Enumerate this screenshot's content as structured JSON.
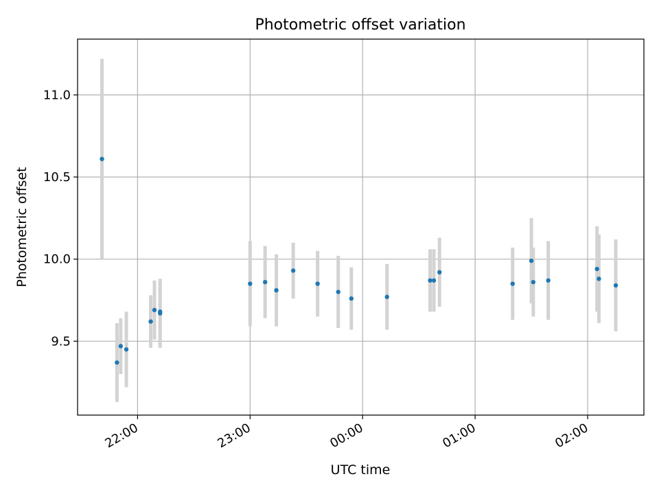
{
  "chart_data": {
    "type": "scatter",
    "title": "Photometric offset variation",
    "xlabel": "UTC time",
    "ylabel": "Photometric offset",
    "grid": true,
    "x_tick_labels": [
      "22:00",
      "23:00",
      "00:00",
      "01:00",
      "02:00"
    ],
    "y_tick_labels": [
      "9.5",
      "10.0",
      "10.5",
      "11.0"
    ],
    "y_ticks": [
      9.5,
      10.0,
      10.5,
      11.0
    ],
    "ylim": [
      9.05,
      11.34
    ],
    "xlim": [
      "21:28",
      "02:30"
    ],
    "points": [
      {
        "x": "21:41",
        "y": 10.61,
        "err": 0.61
      },
      {
        "x": "21:49",
        "y": 9.37,
        "err": 0.24
      },
      {
        "x": "21:51",
        "y": 9.47,
        "err": 0.17
      },
      {
        "x": "21:54",
        "y": 9.45,
        "err": 0.23
      },
      {
        "x": "22:07",
        "y": 9.62,
        "err": 0.16
      },
      {
        "x": "22:09",
        "y": 9.69,
        "err": 0.18
      },
      {
        "x": "22:12",
        "y": 9.67,
        "err": 0.21
      },
      {
        "x": "22:12",
        "y": 9.68,
        "err": 0.2
      },
      {
        "x": "23:00",
        "y": 9.85,
        "err": 0.26
      },
      {
        "x": "23:08",
        "y": 9.86,
        "err": 0.22
      },
      {
        "x": "23:14",
        "y": 9.81,
        "err": 0.22
      },
      {
        "x": "23:23",
        "y": 9.93,
        "err": 0.17
      },
      {
        "x": "23:36",
        "y": 9.85,
        "err": 0.2
      },
      {
        "x": "23:47",
        "y": 9.8,
        "err": 0.22
      },
      {
        "x": "23:54",
        "y": 9.76,
        "err": 0.19
      },
      {
        "x": "00:13",
        "y": 9.77,
        "err": 0.2
      },
      {
        "x": "00:36",
        "y": 9.87,
        "err": 0.19
      },
      {
        "x": "00:38",
        "y": 9.87,
        "err": 0.19
      },
      {
        "x": "00:41",
        "y": 9.92,
        "err": 0.21
      },
      {
        "x": "01:20",
        "y": 9.85,
        "err": 0.22
      },
      {
        "x": "01:30",
        "y": 9.99,
        "err": 0.26
      },
      {
        "x": "01:31",
        "y": 9.86,
        "err": 0.21
      },
      {
        "x": "01:39",
        "y": 9.87,
        "err": 0.24
      },
      {
        "x": "02:05",
        "y": 9.94,
        "err": 0.26
      },
      {
        "x": "02:06",
        "y": 9.88,
        "err": 0.27
      },
      {
        "x": "02:15",
        "y": 9.84,
        "err": 0.28
      }
    ],
    "colors": {
      "marker": "#1f77b4",
      "errorbar": "#d3d3d3",
      "grid": "#b0b0b0"
    }
  }
}
